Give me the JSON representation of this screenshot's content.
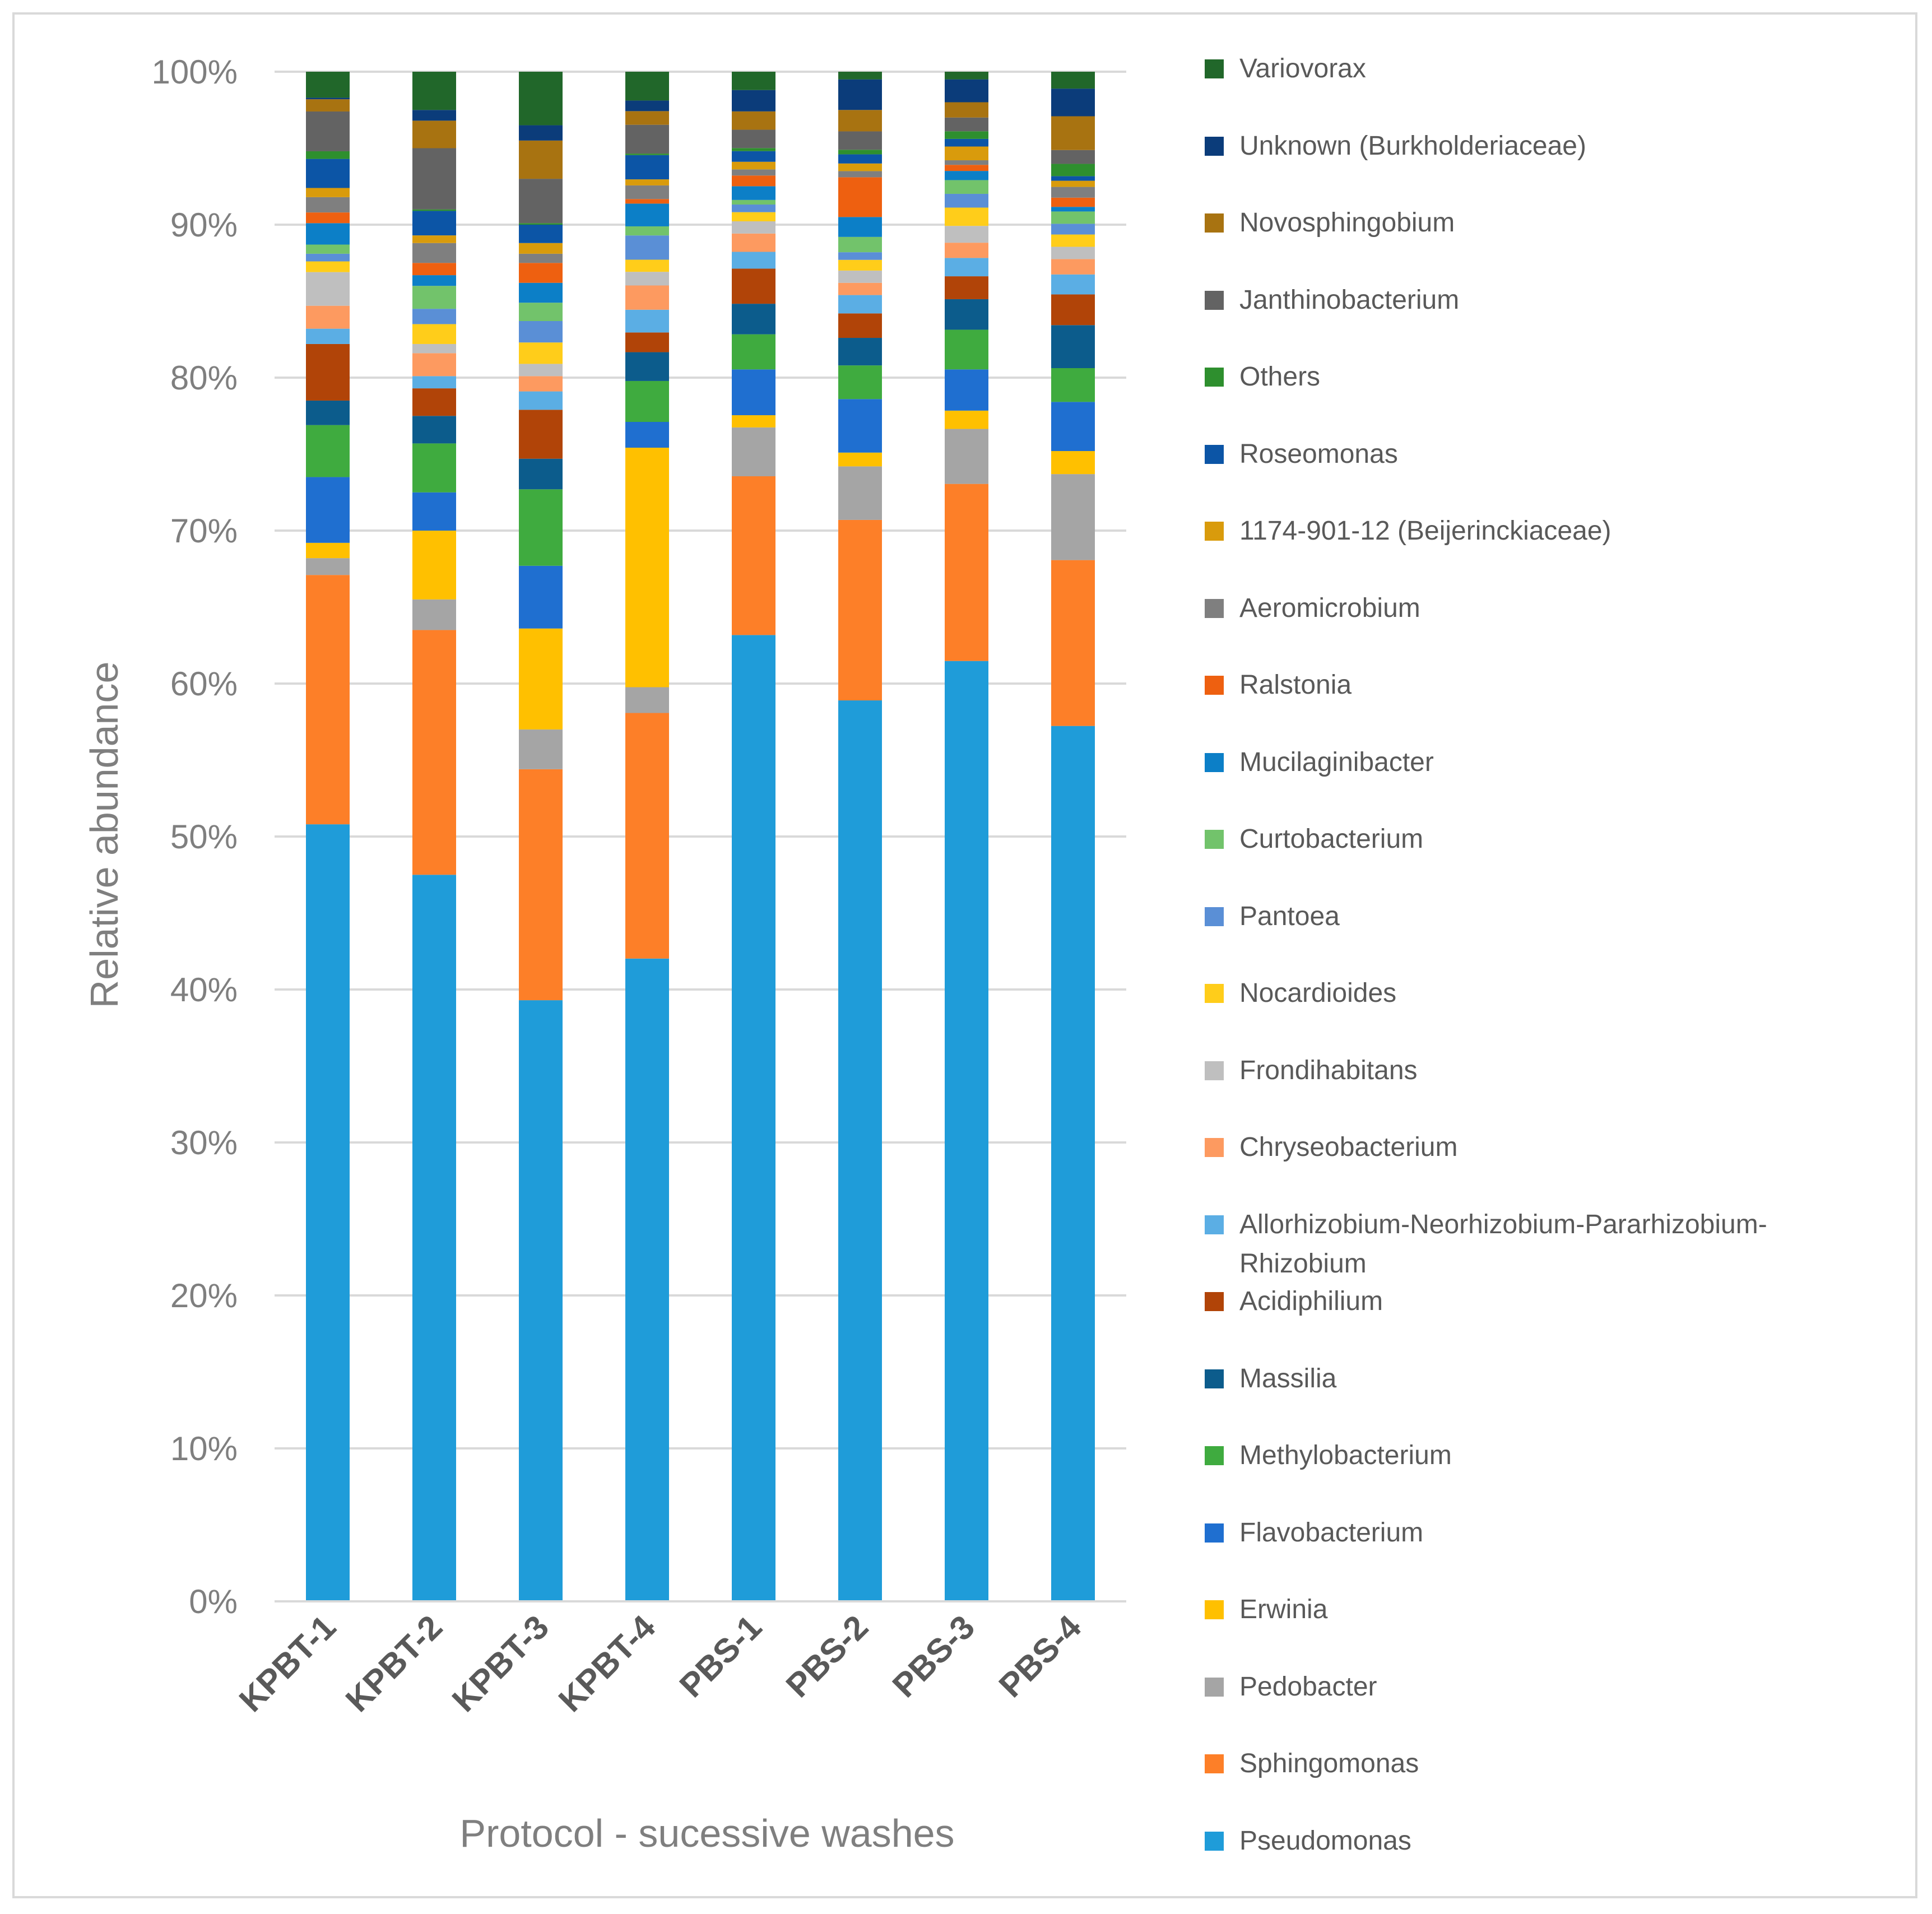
{
  "chart_data": {
    "type": "bar",
    "stacked": true,
    "percent_stacked": true,
    "title": "",
    "xlabel": "Protocol - sucessive washes",
    "ylabel": "Relative abundance",
    "ylim": [
      0,
      100
    ],
    "ytick_labels": [
      "0%",
      "10%",
      "20%",
      "30%",
      "40%",
      "50%",
      "60%",
      "70%",
      "80%",
      "90%",
      "100%"
    ],
    "grid": true,
    "legend_position": "right",
    "categories": [
      "KPBT-1",
      "KPBT-2",
      "KPBT-3",
      "KPBT-4",
      "PBS-1",
      "PBS-2",
      "PBS-3",
      "PBS-4"
    ],
    "series": [
      {
        "name": "Pseudomonas",
        "color": "#1f9cd9",
        "values": [
          50.8,
          47.5,
          39.3,
          42.4,
          63.3,
          58.9,
          61.6,
          57.0
        ]
      },
      {
        "name": "Sphingomonas",
        "color": "#fd7f28",
        "values": [
          16.3,
          16.0,
          15.1,
          16.2,
          10.4,
          11.8,
          11.6,
          10.8
        ]
      },
      {
        "name": "Pedobacter",
        "color": "#a5a5a5",
        "values": [
          1.1,
          2.0,
          2.6,
          1.7,
          3.2,
          3.5,
          3.6,
          5.6
        ]
      },
      {
        "name": "Erwinia",
        "color": "#ffc000",
        "values": [
          1.0,
          4.5,
          6.6,
          15.8,
          0.8,
          0.9,
          1.2,
          1.5
        ]
      },
      {
        "name": "Flavobacterium",
        "color": "#1f6fd0",
        "values": [
          4.3,
          2.5,
          4.1,
          1.7,
          3.0,
          3.5,
          2.7,
          3.2
        ]
      },
      {
        "name": "Methylobacterium",
        "color": "#3fab3f",
        "values": [
          3.4,
          3.2,
          5.0,
          2.7,
          2.3,
          2.2,
          2.6,
          2.2
        ]
      },
      {
        "name": "Massilia",
        "color": "#0c5c8c",
        "values": [
          1.6,
          1.8,
          2.0,
          1.9,
          2.0,
          1.8,
          2.0,
          2.8
        ]
      },
      {
        "name": "Acidiphilium",
        "color": "#b14408",
        "values": [
          3.7,
          1.8,
          3.2,
          1.3,
          2.3,
          1.6,
          1.5,
          2.0
        ]
      },
      {
        "name": "Allorhizobium-Neorhizobium-Pararhizobium-Rhizobium",
        "color": "#5baee4",
        "values": [
          1.0,
          0.8,
          1.2,
          1.5,
          1.1,
          1.2,
          1.2,
          1.3
        ]
      },
      {
        "name": "Chryseobacterium",
        "color": "#fd9a60",
        "values": [
          1.5,
          1.5,
          1.0,
          1.6,
          1.2,
          0.8,
          1.0,
          1.0
        ]
      },
      {
        "name": "Frondihabitans",
        "color": "#bfbfbf",
        "values": [
          2.2,
          0.6,
          0.8,
          0.9,
          0.8,
          0.8,
          1.1,
          0.8
        ]
      },
      {
        "name": "Nocardioides",
        "color": "#ffcd1a",
        "values": [
          0.7,
          1.3,
          1.4,
          0.8,
          0.6,
          0.7,
          1.2,
          0.8
        ]
      },
      {
        "name": "Pantoea",
        "color": "#5a8fd6",
        "values": [
          0.5,
          1.0,
          1.4,
          1.6,
          0.5,
          0.5,
          0.9,
          0.7
        ]
      },
      {
        "name": "Curtobacterium",
        "color": "#72c36b",
        "values": [
          0.6,
          1.5,
          1.2,
          0.6,
          0.3,
          1.0,
          0.9,
          0.8
        ]
      },
      {
        "name": "Mucilaginibacter",
        "color": "#0c7fc7",
        "values": [
          1.4,
          0.7,
          1.3,
          1.5,
          0.9,
          1.3,
          0.6,
          0.3
        ]
      },
      {
        "name": "Ralstonia",
        "color": "#ee6010",
        "values": [
          0.7,
          0.8,
          1.3,
          0.3,
          0.7,
          2.6,
          0.4,
          0.6
        ]
      },
      {
        "name": "Aeromicrobium",
        "color": "#7f7f7f",
        "values": [
          1.0,
          1.3,
          0.6,
          0.9,
          0.4,
          0.4,
          0.3,
          0.7
        ]
      },
      {
        "name": "1174-901-12 (Beijerinckiaceae)",
        "color": "#d99b0c",
        "values": [
          0.6,
          0.5,
          0.7,
          0.4,
          0.5,
          0.5,
          0.9,
          0.4
        ]
      },
      {
        "name": "Roseomonas",
        "color": "#0c55a6",
        "values": [
          1.9,
          1.6,
          1.2,
          1.6,
          0.7,
          0.6,
          0.5,
          0.3
        ]
      },
      {
        "name": "Others",
        "color": "#2e8f2e",
        "values": [
          0.5,
          0.1,
          0.1,
          0.1,
          0.2,
          0.3,
          0.5,
          0.8
        ]
      },
      {
        "name": "Janthinobacterium",
        "color": "#636363",
        "values": [
          2.6,
          4.0,
          2.9,
          1.9,
          1.2,
          1.2,
          0.9,
          0.9
        ]
      },
      {
        "name": "Novosphingobium",
        "color": "#a87311",
        "values": [
          0.8,
          1.8,
          2.5,
          0.9,
          1.2,
          1.4,
          1.0,
          2.2
        ]
      },
      {
        "name": "Unknown (Burkholderiaceae)",
        "color": "#0b3c7a",
        "values": [
          0.1,
          0.7,
          1.0,
          0.7,
          1.4,
          2.0,
          1.5,
          1.8
        ]
      },
      {
        "name": "Variovorax",
        "color": "#21672a",
        "values": [
          1.7,
          2.5,
          3.5,
          1.9,
          1.2,
          0.5,
          0.5,
          1.1
        ]
      }
    ]
  }
}
